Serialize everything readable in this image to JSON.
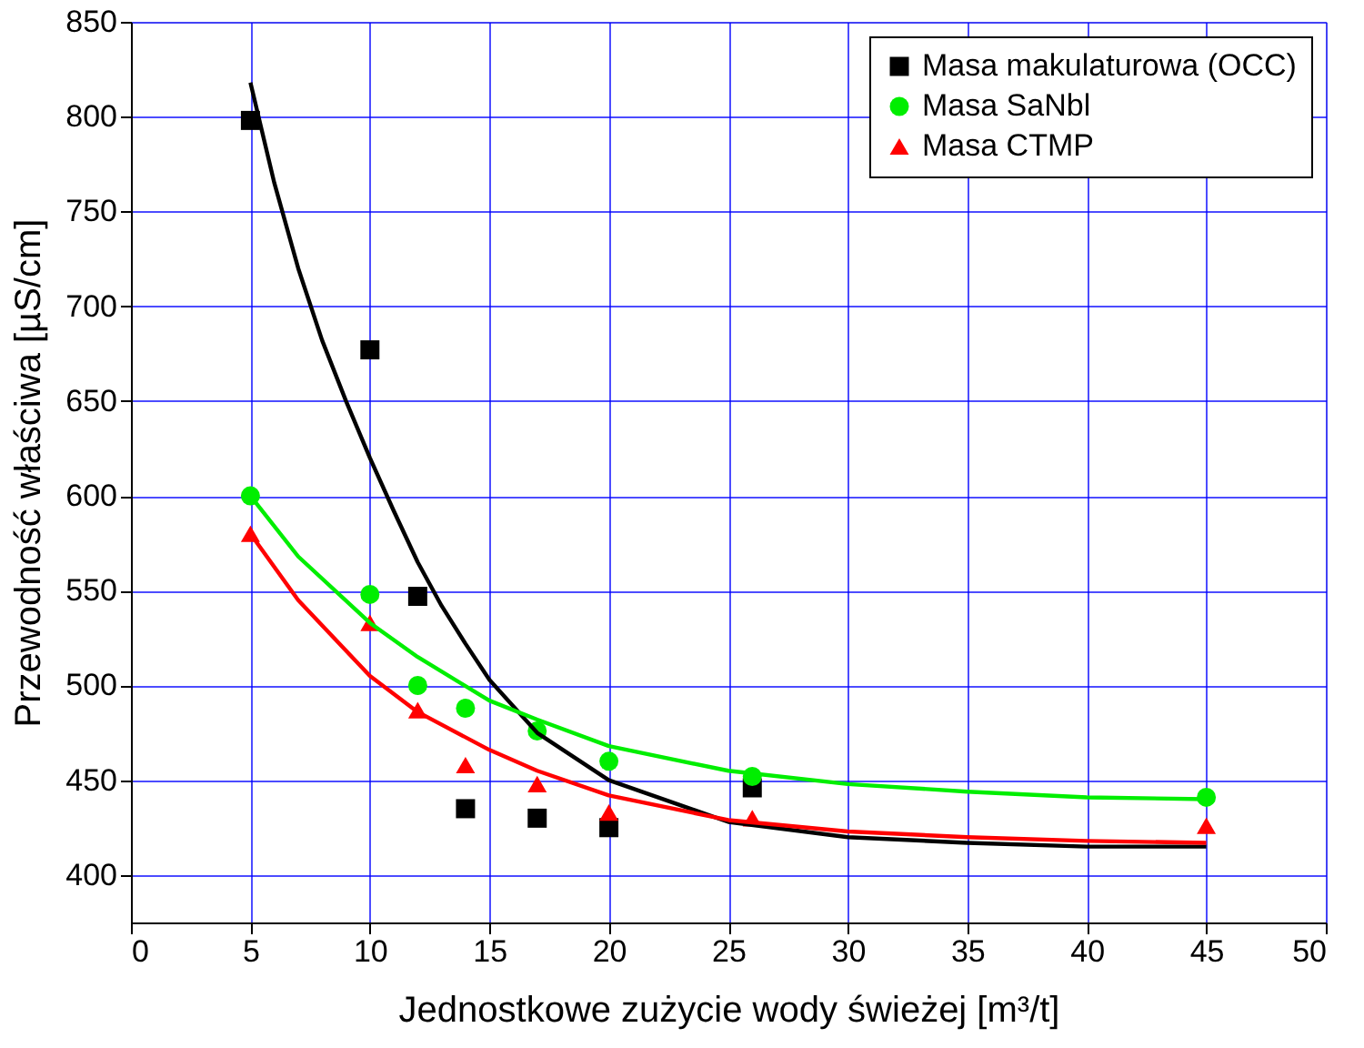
{
  "chart_data": {
    "type": "scatter",
    "xlabel": "Jednostkowe zużycie wody świeżej [m³/t]",
    "ylabel": "Przewodność właściwa [µS/cm]",
    "xlim": [
      0,
      50
    ],
    "xticks": [
      0,
      5,
      10,
      15,
      20,
      25,
      30,
      35,
      40,
      45,
      50
    ],
    "ylim": [
      375,
      850
    ],
    "yticks": [
      400,
      450,
      500,
      550,
      600,
      650,
      700,
      750,
      800,
      850
    ],
    "grid": true,
    "legend": "top right",
    "series": [
      {
        "name": "Masa makulaturowa (OCC)",
        "color": "#000000",
        "marker": "square",
        "x": [
          5,
          10,
          12,
          14,
          17,
          20,
          26
        ],
        "values": [
          798,
          677,
          547,
          435,
          430,
          425,
          446
        ]
      },
      {
        "name": "Masa SaNbl",
        "color": "#00ee00",
        "marker": "circle",
        "x": [
          5,
          10,
          12,
          14,
          17,
          20,
          26,
          45
        ],
        "values": [
          600,
          548,
          500,
          488,
          476,
          460,
          452,
          441
        ]
      },
      {
        "name": "Masa CTMP",
        "color": "#ff0000",
        "marker": "triangle",
        "x": [
          5,
          10,
          12,
          14,
          17,
          20,
          26,
          45
        ],
        "values": [
          580,
          533,
          487,
          458,
          448,
          433,
          430,
          426
        ]
      },
      {
        "type": "line",
        "color": "#000000",
        "marker": "none",
        "x": [
          5,
          6,
          7,
          8,
          9,
          10,
          11,
          12,
          13,
          14,
          15,
          17,
          20,
          25,
          30,
          35,
          40,
          45
        ],
        "values": [
          818,
          765,
          720,
          682,
          650,
          620,
          592,
          565,
          542,
          522,
          503,
          475,
          450,
          428,
          420,
          417,
          415,
          415
        ]
      },
      {
        "type": "line",
        "color": "#00ee00",
        "marker": "none",
        "x": [
          5,
          7,
          10,
          12,
          15,
          17,
          20,
          25,
          30,
          35,
          40,
          45
        ],
        "values": [
          600,
          568,
          533,
          515,
          492,
          482,
          468,
          455,
          448,
          444,
          441,
          440
        ]
      },
      {
        "type": "line",
        "color": "#ff0000",
        "marker": "none",
        "x": [
          5,
          7,
          10,
          12,
          15,
          17,
          20,
          25,
          30,
          35,
          40,
          45
        ],
        "values": [
          580,
          545,
          505,
          486,
          466,
          455,
          442,
          429,
          423,
          420,
          418,
          417
        ]
      }
    ]
  }
}
